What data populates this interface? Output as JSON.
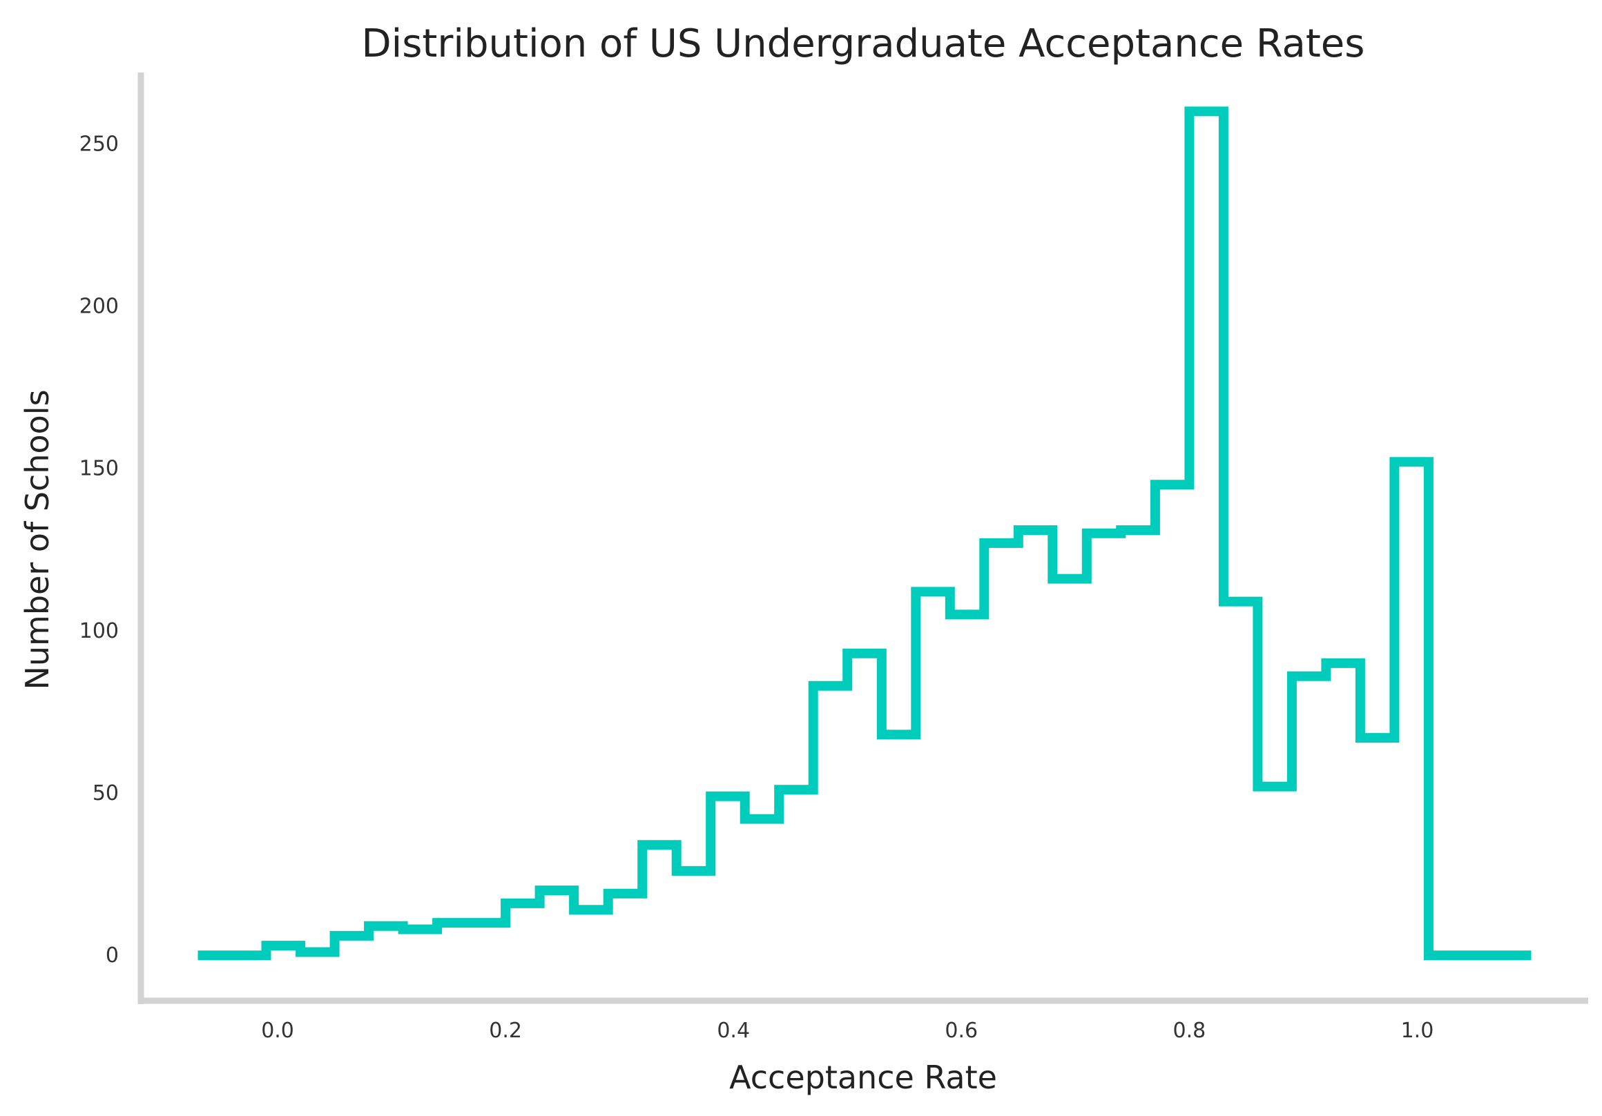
{
  "chart_data": {
    "type": "histogram",
    "style": "step",
    "title": "Distribution of US Undergraduate Acceptance Rates",
    "xlabel": "Acceptance Rate",
    "ylabel": "Number of Schools",
    "xlim": [
      -0.12,
      1.15
    ],
    "ylim": [
      -14,
      272
    ],
    "xticks": [
      0.0,
      0.2,
      0.4,
      0.6,
      0.8,
      1.0
    ],
    "xtick_labels": [
      "0.0",
      "0.2",
      "0.4",
      "0.6",
      "0.8",
      "1.0"
    ],
    "yticks": [
      0,
      50,
      100,
      150,
      200,
      250
    ],
    "ytick_labels": [
      "0",
      "50",
      "100",
      "150",
      "200",
      "250"
    ],
    "grid": false,
    "line_color": "#00CCBB",
    "spine_color": "#D3D3D3",
    "bin_edges": [
      -0.07,
      -0.04,
      -0.01,
      0.02,
      0.05,
      0.08,
      0.11,
      0.14,
      0.17,
      0.2,
      0.23,
      0.26,
      0.29,
      0.32,
      0.35,
      0.38,
      0.41,
      0.44,
      0.47,
      0.5,
      0.53,
      0.56,
      0.59,
      0.62,
      0.65,
      0.68,
      0.71,
      0.74,
      0.77,
      0.8,
      0.83,
      0.86,
      0.89,
      0.92,
      0.95,
      0.98,
      1.01,
      1.04,
      1.07,
      1.1
    ],
    "counts": [
      0,
      0,
      3,
      1,
      6,
      9,
      8,
      10,
      10,
      16,
      20,
      14,
      19,
      34,
      26,
      49,
      42,
      51,
      83,
      93,
      68,
      112,
      105,
      127,
      131,
      116,
      130,
      131,
      145,
      260,
      109,
      52,
      86,
      90,
      67,
      152,
      0,
      0,
      0
    ]
  }
}
